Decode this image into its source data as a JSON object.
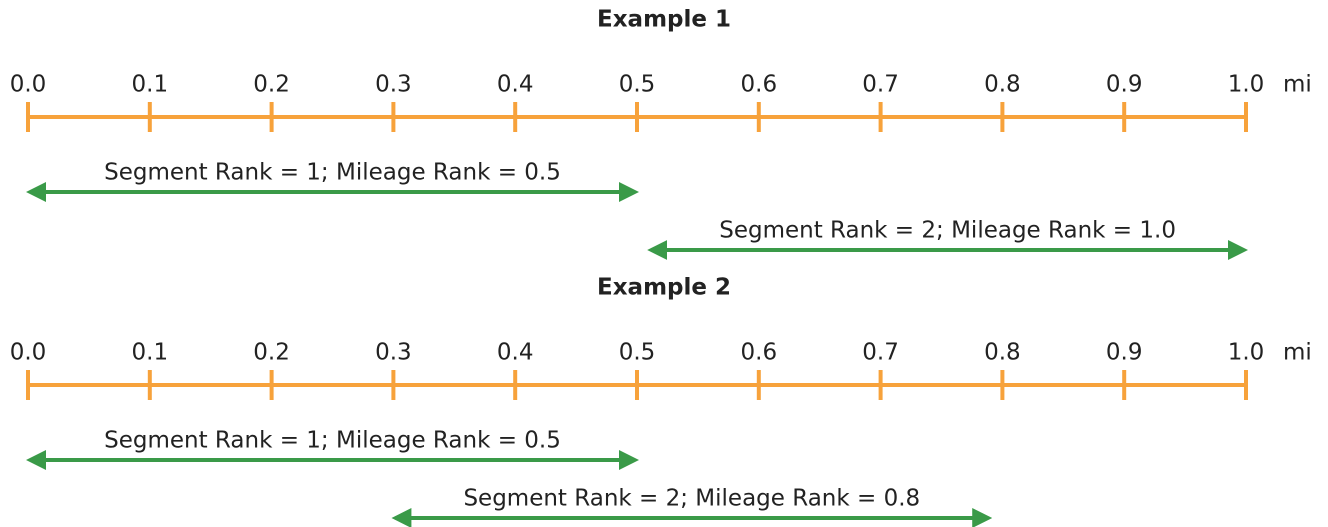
{
  "examples": [
    {
      "title": "Example 1",
      "unit": "mi",
      "ticks": [
        {
          "value": 0,
          "label": "0.0"
        },
        0.1,
        0.2,
        0.3,
        0.4,
        0.5,
        0.6,
        0.7,
        0.8,
        0.9,
        {
          "value": 1,
          "label": "1.0"
        }
      ],
      "segments": [
        {
          "label": "Segment Rank = 1; Mileage Rank = 0.5",
          "start": 0,
          "end": 0.5
        },
        {
          "label": "Segment Rank = 2; Mileage Rank = 1.0",
          "start": 0.51,
          "end": 1
        }
      ]
    },
    {
      "title": "Example 2",
      "unit": "mi",
      "ticks": [
        {
          "value": 0,
          "label": "0.0"
        },
        0.1,
        0.2,
        0.3,
        0.4,
        0.5,
        0.6,
        0.7,
        0.8,
        0.9,
        {
          "value": 1,
          "label": "1.0"
        }
      ],
      "segments": [
        {
          "label": "Segment Rank = 1; Mileage Rank = 0.5",
          "start": 0,
          "end": 0.5
        },
        {
          "label": "Segment Rank = 2; Mileage Rank = 0.8",
          "start": 0.3,
          "end": 0.79
        }
      ]
    }
  ]
}
